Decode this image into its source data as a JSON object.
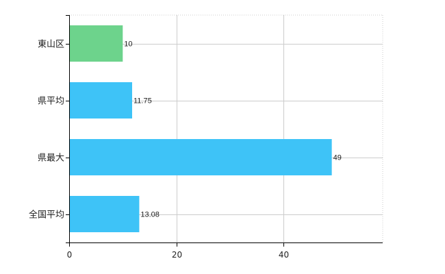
{
  "chart_data": {
    "type": "bar",
    "orientation": "horizontal",
    "categories": [
      "東山区",
      "県平均",
      "県最大",
      "全国平均"
    ],
    "values": [
      10,
      11.75,
      49,
      13.08
    ],
    "value_labels": [
      "10",
      "11.75",
      "49",
      "13.08"
    ],
    "bar_colors": [
      "#6dd38c",
      "#3ec3f7",
      "#3ec3f7",
      "#3ec3f7"
    ],
    "xlim": [
      0,
      58.5
    ],
    "xticks": [
      0,
      20,
      40
    ],
    "xtick_labels": [
      "0",
      "20",
      "40"
    ],
    "grid": true,
    "grid_color": "#cccccc",
    "axis_color": "#000000"
  }
}
